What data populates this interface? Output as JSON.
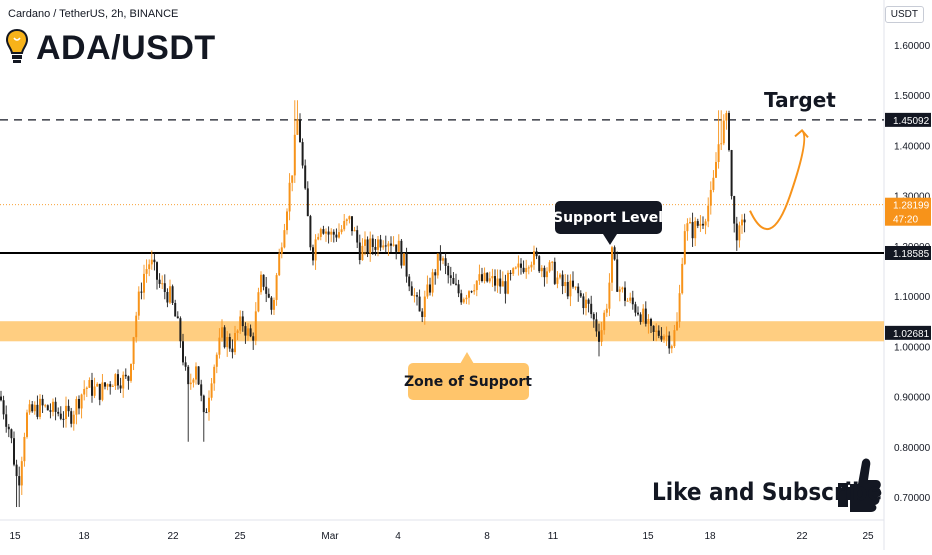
{
  "header": {
    "subtitle": "Cardano / TetherUS, 2h, BINANCE",
    "ticker": "ADA/USDT",
    "currency_button": "USDT"
  },
  "footer": {
    "cta": "Like and Subscribe"
  },
  "colors": {
    "up": "#f7931a",
    "down": "#1e1e1e",
    "support_zone": "#ffc56b",
    "accent": "#f7931a",
    "line": "#000000"
  },
  "chart_data": {
    "type": "candlestick",
    "symbol": "Cardano / TetherUS",
    "interval": "2h",
    "exchange": "BINANCE",
    "ylim": [
      0.66,
      1.69
    ],
    "yticks": [
      "0.70000",
      "0.80000",
      "0.90000",
      "1.00000",
      "1.10000",
      "1.20000",
      "1.30000",
      "1.40000",
      "1.50000",
      "1.60000"
    ],
    "xticks": [
      "15",
      "18",
      "22",
      "25",
      "Mar",
      "4",
      "8",
      "11",
      "15",
      "18",
      "22",
      "25"
    ],
    "price_path": [
      [
        0,
        0.9
      ],
      [
        10,
        0.83
      ],
      [
        18,
        0.72
      ],
      [
        26,
        0.86
      ],
      [
        40,
        0.88
      ],
      [
        55,
        0.87
      ],
      [
        70,
        0.86
      ],
      [
        85,
        0.92
      ],
      [
        100,
        0.91
      ],
      [
        115,
        0.94
      ],
      [
        128,
        0.93
      ],
      [
        135,
        1.05
      ],
      [
        143,
        1.14
      ],
      [
        150,
        1.17
      ],
      [
        160,
        1.12
      ],
      [
        170,
        1.1
      ],
      [
        180,
        1.02
      ],
      [
        188,
        0.91
      ],
      [
        196,
        0.97
      ],
      [
        204,
        0.85
      ],
      [
        212,
        0.95
      ],
      [
        222,
        1.02
      ],
      [
        232,
        1.0
      ],
      [
        242,
        1.05
      ],
      [
        252,
        1.01
      ],
      [
        262,
        1.14
      ],
      [
        272,
        1.07
      ],
      [
        282,
        1.22
      ],
      [
        292,
        1.35
      ],
      [
        298,
        1.46
      ],
      [
        305,
        1.3
      ],
      [
        312,
        1.18
      ],
      [
        320,
        1.25
      ],
      [
        330,
        1.22
      ],
      [
        340,
        1.23
      ],
      [
        350,
        1.25
      ],
      [
        360,
        1.19
      ],
      [
        372,
        1.2
      ],
      [
        385,
        1.22
      ],
      [
        398,
        1.2
      ],
      [
        410,
        1.13
      ],
      [
        420,
        1.06
      ],
      [
        430,
        1.12
      ],
      [
        440,
        1.18
      ],
      [
        452,
        1.12
      ],
      [
        462,
        1.1
      ],
      [
        475,
        1.13
      ],
      [
        490,
        1.13
      ],
      [
        505,
        1.12
      ],
      [
        518,
        1.15
      ],
      [
        530,
        1.18
      ],
      [
        542,
        1.16
      ],
      [
        552,
        1.15
      ],
      [
        562,
        1.12
      ],
      [
        575,
        1.11
      ],
      [
        588,
        1.08
      ],
      [
        600,
        1.02
      ],
      [
        608,
        1.1
      ],
      [
        612,
        1.18
      ],
      [
        618,
        1.12
      ],
      [
        628,
        1.09
      ],
      [
        640,
        1.07
      ],
      [
        652,
        1.02
      ],
      [
        662,
        1.03
      ],
      [
        672,
        1.01
      ],
      [
        678,
        1.05
      ],
      [
        684,
        1.24
      ],
      [
        692,
        1.23
      ],
      [
        702,
        1.25
      ],
      [
        712,
        1.3
      ],
      [
        718,
        1.4
      ],
      [
        724,
        1.44
      ],
      [
        728,
        1.45
      ],
      [
        733,
        1.24
      ],
      [
        740,
        1.22
      ],
      [
        745,
        1.26
      ]
    ],
    "projection": [
      [
        750,
        1.27
      ],
      [
        770,
        1.22
      ],
      [
        790,
        1.3
      ],
      [
        802,
        1.43
      ]
    ],
    "levels": {
      "target": 1.45092,
      "current": 1.28199,
      "support": 1.18585,
      "zone": 1.02681,
      "zone_range": [
        1.01,
        1.05
      ]
    },
    "price_labels": [
      "1.45092",
      "1.28199",
      "47:20",
      "1.18585",
      "1.02681"
    ],
    "annotations": {
      "target": "Target",
      "support_level": "Support Level",
      "zone": "Zone of Support"
    }
  }
}
